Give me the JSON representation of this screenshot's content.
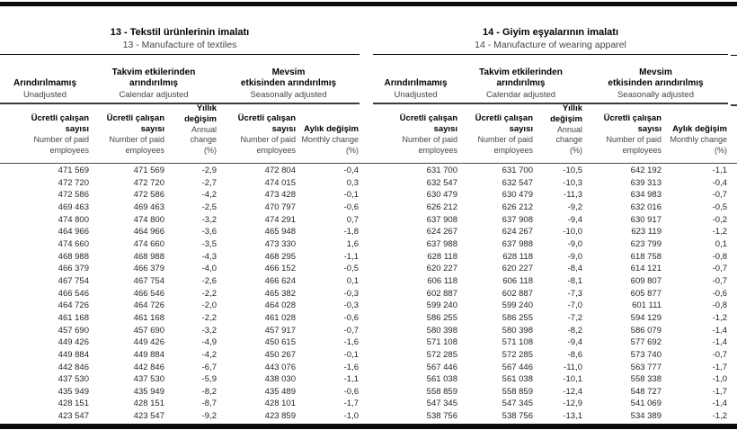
{
  "table": {
    "groups": [
      {
        "title_tr": "13 - Tekstil ürünlerinin imalatı",
        "title_en": "13 - Manufacture of textiles"
      },
      {
        "title_tr": "14 - Giyim eşyalarının imalatı",
        "title_en": "14 - Manufacture of wearing apparel"
      }
    ],
    "adjustments": {
      "unadjusted_tr": "Arındırılmamış",
      "unadjusted_en": "Unadjusted",
      "calendar_tr_l1": "Takvim etkilerinden",
      "calendar_tr_l2": "arındırılmış",
      "calendar_en": "Calendar adjusted",
      "seasonal_tr_l1": "Mevsim",
      "seasonal_tr_l2": "etkisinden arındırılmış",
      "seasonal_en": "Seasonally adjusted"
    },
    "columns": {
      "employees_tr_l1": "Ücretli çalışan",
      "employees_tr_l2": "sayısı",
      "employees_en_l1": "Number of paid",
      "employees_en_l2": "employees",
      "annual_tr": "Yıllık değişim",
      "annual_en": "Annual change",
      "monthly_tr": "Aylık değişim",
      "monthly_en": "Monthly change",
      "percent": "(%)"
    },
    "rows": [
      [
        "471 569",
        "471 569",
        "-2,9",
        "472 804",
        "-0,4",
        "631 700",
        "631 700",
        "-10,5",
        "642 192",
        "-1,1"
      ],
      [
        "472 720",
        "472 720",
        "-2,7",
        "474 015",
        "0,3",
        "632 547",
        "632 547",
        "-10,3",
        "639 313",
        "-0,4"
      ],
      [
        "472 586",
        "472 586",
        "-4,2",
        "473 428",
        "-0,1",
        "630 479",
        "630 479",
        "-11,3",
        "634 983",
        "-0,7"
      ],
      [
        "469 463",
        "469 463",
        "-2,5",
        "470 797",
        "-0,6",
        "626 212",
        "626 212",
        "-9,2",
        "632 016",
        "-0,5"
      ],
      [
        "474 800",
        "474 800",
        "-3,2",
        "474 291",
        "0,7",
        "637 908",
        "637 908",
        "-9,4",
        "630 917",
        "-0,2"
      ],
      [
        "464 966",
        "464 966",
        "-3,6",
        "465 948",
        "-1,8",
        "624 267",
        "624 267",
        "-10,0",
        "623 119",
        "-1,2"
      ],
      [
        "474 660",
        "474 660",
        "-3,5",
        "473 330",
        "1,6",
        "637 988",
        "637 988",
        "-9,0",
        "623 799",
        "0,1"
      ],
      [
        "468 988",
        "468 988",
        "-4,3",
        "468 295",
        "-1,1",
        "628 118",
        "628 118",
        "-9,0",
        "618 758",
        "-0,8"
      ],
      [
        "466 379",
        "466 379",
        "-4,0",
        "466 152",
        "-0,5",
        "620 227",
        "620 227",
        "-8,4",
        "614 121",
        "-0,7"
      ],
      [
        "467 754",
        "467 754",
        "-2,6",
        "466 624",
        "0,1",
        "606 118",
        "606 118",
        "-8,1",
        "609 807",
        "-0,7"
      ],
      [
        "466 546",
        "466 546",
        "-2,2",
        "465 382",
        "-0,3",
        "602 887",
        "602 887",
        "-7,3",
        "605 877",
        "-0,6"
      ],
      [
        "464 726",
        "464 726",
        "-2,0",
        "464 028",
        "-0,3",
        "599 240",
        "599 240",
        "-7,0",
        "601 111",
        "-0,8"
      ],
      [
        "461 168",
        "461 168",
        "-2,2",
        "461 028",
        "-0,6",
        "586 255",
        "586 255",
        "-7,2",
        "594 129",
        "-1,2"
      ],
      [
        "457 690",
        "457 690",
        "-3,2",
        "457 917",
        "-0,7",
        "580 398",
        "580 398",
        "-8,2",
        "586 079",
        "-1,4"
      ],
      [
        "449 426",
        "449 426",
        "-4,9",
        "450 615",
        "-1,6",
        "571 108",
        "571 108",
        "-9,4",
        "577 692",
        "-1,4"
      ],
      [
        "449 884",
        "449 884",
        "-4,2",
        "450 267",
        "-0,1",
        "572 285",
        "572 285",
        "-8,6",
        "573 740",
        "-0,7"
      ],
      [
        "442 846",
        "442 846",
        "-6,7",
        "443 076",
        "-1,6",
        "567 446",
        "567 446",
        "-11,0",
        "563 777",
        "-1,7"
      ],
      [
        "437 530",
        "437 530",
        "-5,9",
        "438 030",
        "-1,1",
        "561 038",
        "561 038",
        "-10,1",
        "558 338",
        "-1,0"
      ],
      [
        "435 949",
        "435 949",
        "-8,2",
        "435 489",
        "-0,6",
        "558 859",
        "558 859",
        "-12,4",
        "548 727",
        "-1,7"
      ],
      [
        "428 151",
        "428 151",
        "-8,7",
        "428 101",
        "-1,7",
        "547 345",
        "547 345",
        "-12,9",
        "541 069",
        "-1,4"
      ],
      [
        "423 547",
        "423 547",
        "-9,2",
        "423 859",
        "-1,0",
        "538 756",
        "538 756",
        "-13,1",
        "534 389",
        "-1,2"
      ]
    ]
  }
}
